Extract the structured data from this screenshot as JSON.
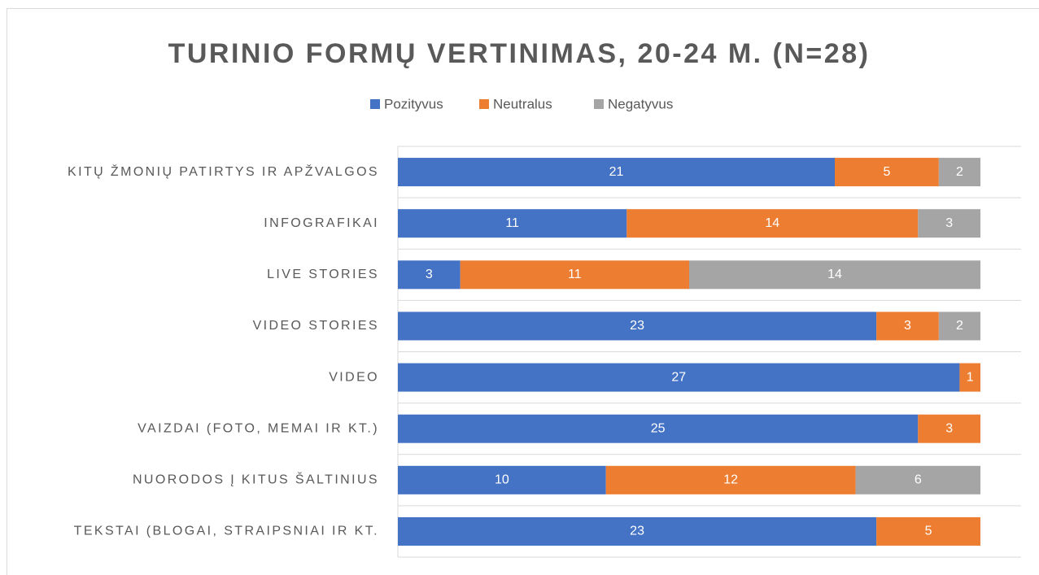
{
  "chart_data": {
    "type": "stacked_barh",
    "title": "TURINIO FORMŲ VERTINIMAS, 20-24 M. (N=28)",
    "categories": [
      "KITŲ ŽMONIŲ PATIRTYS IR APŽVALGOS",
      "INFOGRAFIKAI",
      "LIVE STORIES",
      "VIDEO STORIES",
      "VIDEO",
      "VAIZDAI (FOTO, MEMAI IR KT.)",
      "NUORODOS Į KITUS ŠALTINIUS",
      "TEKSTAI (BLOGAI, STRAIPSNIAI IR KT."
    ],
    "series": [
      {
        "name": "Pozityvus",
        "color": "#4472c4",
        "values": [
          21,
          11,
          3,
          23,
          27,
          25,
          10,
          23
        ]
      },
      {
        "name": "Neutralus",
        "color": "#ed7d31",
        "values": [
          5,
          14,
          11,
          3,
          1,
          3,
          12,
          5
        ]
      },
      {
        "name": "Negatyvus",
        "color": "#a5a5a5",
        "values": [
          2,
          3,
          14,
          2,
          0,
          0,
          6,
          0
        ]
      }
    ],
    "xlim": [
      0,
      28
    ],
    "legend": "top"
  }
}
